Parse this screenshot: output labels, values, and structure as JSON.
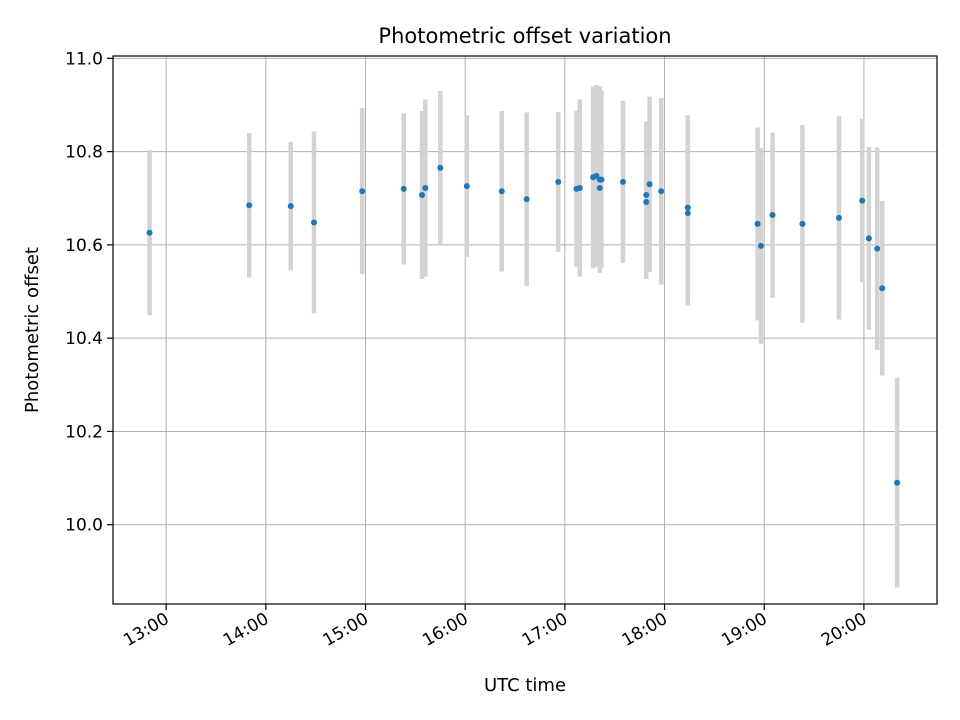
{
  "chart_data": {
    "type": "scatter",
    "title": "Photometric offset variation",
    "xlabel": "UTC time",
    "ylabel": "Photometric offset",
    "grid": true,
    "x_unit": "hours UTC",
    "xlim": [
      "12:28",
      "20:44"
    ],
    "ylim": [
      9.83,
      11.005
    ],
    "xticks": [
      "13:00",
      "14:00",
      "15:00",
      "16:00",
      "17:00",
      "18:00",
      "19:00",
      "20:00"
    ],
    "yticks": [
      10.0,
      10.2,
      10.4,
      10.6,
      10.8,
      11.0
    ],
    "yticks_labels": [
      "10.0",
      "10.2",
      "10.4",
      "10.6",
      "10.8",
      "11.0"
    ],
    "colors": {
      "marker": "#1f77b4",
      "error_bar": "#d3d3d3"
    },
    "series": [
      {
        "marker": "point",
        "error_bars": true,
        "points": [
          {
            "x": "12:50",
            "y": 10.626,
            "yerr": 0.177
          },
          {
            "x": "13:50",
            "y": 10.685,
            "yerr": 0.155
          },
          {
            "x": "14:15",
            "y": 10.683,
            "yerr": 0.138
          },
          {
            "x": "14:29",
            "y": 10.648,
            "yerr": 0.195
          },
          {
            "x": "14:58",
            "y": 10.715,
            "yerr": 0.178
          },
          {
            "x": "15:23",
            "y": 10.72,
            "yerr": 0.162
          },
          {
            "x": "15:34",
            "y": 10.707,
            "yerr": 0.18
          },
          {
            "x": "15:36",
            "y": 10.722,
            "yerr": 0.19
          },
          {
            "x": "15:45",
            "y": 10.765,
            "yerr": 0.165
          },
          {
            "x": "16:01",
            "y": 10.726,
            "yerr": 0.152
          },
          {
            "x": "16:22",
            "y": 10.715,
            "yerr": 0.172
          },
          {
            "x": "16:37",
            "y": 10.698,
            "yerr": 0.186
          },
          {
            "x": "16:56",
            "y": 10.735,
            "yerr": 0.15
          },
          {
            "x": "17:07",
            "y": 10.72,
            "yerr": 0.168
          },
          {
            "x": "17:09",
            "y": 10.722,
            "yerr": 0.19
          },
          {
            "x": "17:17",
            "y": 10.745,
            "yerr": 0.195
          },
          {
            "x": "17:19",
            "y": 10.748,
            "yerr": 0.195
          },
          {
            "x": "17:21",
            "y": 10.74,
            "yerr": 0.2
          },
          {
            "x": "17:21",
            "y": 10.722,
            "yerr": 0.18
          },
          {
            "x": "17:22",
            "y": 10.74,
            "yerr": 0.19
          },
          {
            "x": "17:35",
            "y": 10.735,
            "yerr": 0.174
          },
          {
            "x": "17:49",
            "y": 10.707,
            "yerr": 0.158
          },
          {
            "x": "17:49",
            "y": 10.692,
            "yerr": 0.165
          },
          {
            "x": "17:51",
            "y": 10.73,
            "yerr": 0.188
          },
          {
            "x": "17:58",
            "y": 10.715,
            "yerr": 0.2
          },
          {
            "x": "18:14",
            "y": 10.68,
            "yerr": 0.198
          },
          {
            "x": "18:14",
            "y": 10.668,
            "yerr": 0.198
          },
          {
            "x": "18:56",
            "y": 10.645,
            "yerr": 0.207
          },
          {
            "x": "18:58",
            "y": 10.598,
            "yerr": 0.21
          },
          {
            "x": "19:05",
            "y": 10.664,
            "yerr": 0.177
          },
          {
            "x": "19:23",
            "y": 10.645,
            "yerr": 0.212
          },
          {
            "x": "19:45",
            "y": 10.658,
            "yerr": 0.218
          },
          {
            "x": "19:59",
            "y": 10.695,
            "yerr": 0.175
          },
          {
            "x": "20:03",
            "y": 10.614,
            "yerr": 0.196
          },
          {
            "x": "20:08",
            "y": 10.592,
            "yerr": 0.217
          },
          {
            "x": "20:11",
            "y": 10.507,
            "yerr": 0.187
          },
          {
            "x": "20:20",
            "y": 10.09,
            "yerr": 0.225
          }
        ]
      }
    ]
  }
}
